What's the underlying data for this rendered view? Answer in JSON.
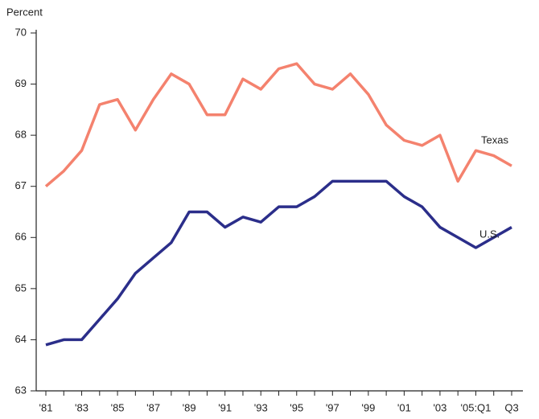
{
  "chart_data": {
    "type": "line",
    "y_label": "Percent",
    "categories": [
      "'81",
      null,
      "'83",
      null,
      "'85",
      null,
      "'87",
      null,
      "'89",
      null,
      "'91",
      null,
      "'93",
      null,
      "'95",
      null,
      "'97",
      null,
      "'99",
      null,
      "'01",
      null,
      "'03",
      null,
      "'05:Q1",
      null,
      "Q3"
    ],
    "series": [
      {
        "name": "Texas",
        "color": "#f4826e",
        "values": [
          67.0,
          67.3,
          67.7,
          68.6,
          68.7,
          68.1,
          68.7,
          69.2,
          69.0,
          68.4,
          68.4,
          69.1,
          68.9,
          69.3,
          69.4,
          69.0,
          68.9,
          69.2,
          68.8,
          68.2,
          67.9,
          67.8,
          68.0,
          67.1,
          67.7,
          67.6,
          67.4
        ]
      },
      {
        "name": "U.S.",
        "color": "#2b2e8a",
        "values": [
          63.9,
          64.0,
          64.0,
          64.4,
          64.8,
          65.3,
          65.6,
          65.9,
          66.5,
          66.5,
          66.2,
          66.4,
          66.3,
          66.6,
          66.6,
          66.8,
          67.1,
          67.1,
          67.1,
          67.1,
          66.8,
          66.6,
          66.2,
          66.0,
          65.8,
          66.0,
          66.2
        ]
      }
    ],
    "ylim": [
      63,
      70
    ],
    "yticks": [
      63,
      64,
      65,
      66,
      67,
      68,
      69,
      70
    ]
  }
}
